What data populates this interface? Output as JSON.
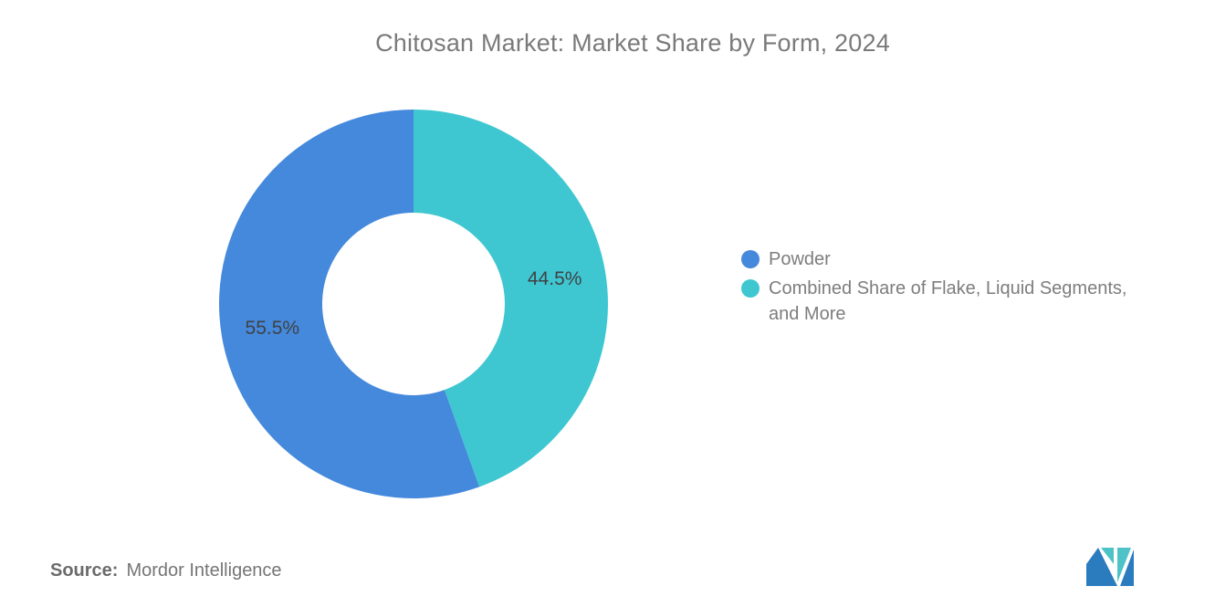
{
  "source": {
    "label": "Source:",
    "value": "Mordor Intelligence"
  },
  "logo": {
    "name": "mordor-intelligence-logo",
    "blue": "#2b7bbf",
    "teal": "#4ec3c7"
  },
  "chart_data": {
    "type": "pie",
    "title": "Chitosan Market: Market Share by Form, 2024",
    "donut": true,
    "inner_radius_ratio": 0.47,
    "start": "top",
    "direction": "clockwise, second segment drawn first (right side)",
    "legend_position": "right",
    "title_color": "#7a7a7a",
    "label_color": "#3f4245",
    "segments": [
      {
        "id": "powder",
        "name": "Powder",
        "value": 55.5,
        "label": "55.5%",
        "color": "#4589DC"
      },
      {
        "id": "combined",
        "name": "Combined Share of Flake, Liquid Segments,\nand More",
        "value": 44.5,
        "label": "44.5%",
        "color": "#3FC7D1"
      }
    ]
  }
}
